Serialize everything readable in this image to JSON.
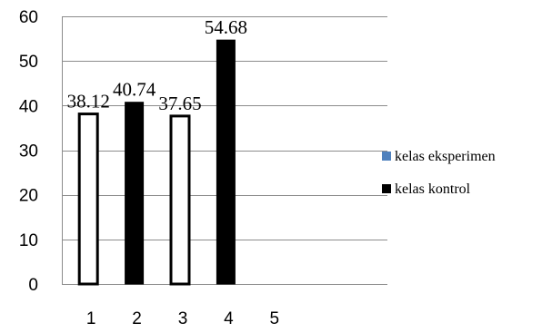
{
  "chart_data": {
    "type": "bar",
    "categories": [
      "1",
      "2",
      "3",
      "4",
      "5"
    ],
    "ylim": [
      0,
      60
    ],
    "yticks": [
      0,
      10,
      20,
      30,
      40,
      50,
      60
    ],
    "grid": true,
    "legend_position": "right",
    "series": [
      {
        "name": "kelas eksperimen",
        "color": "#4f81bd",
        "bar_style": "hollow-outline"
      },
      {
        "name": "kelas kontrol",
        "color": "#000000",
        "bar_style": "solid"
      }
    ],
    "bars": [
      {
        "category": "1",
        "value": 38.12,
        "label": "38.12",
        "series": "kelas eksperimen"
      },
      {
        "category": "2",
        "value": 40.74,
        "label": "40.74",
        "series": "kelas kontrol"
      },
      {
        "category": "3",
        "value": 37.65,
        "label": "37.65",
        "series": "kelas eksperimen"
      },
      {
        "category": "4",
        "value": 54.68,
        "label": "54.68",
        "series": "kelas kontrol"
      }
    ]
  }
}
